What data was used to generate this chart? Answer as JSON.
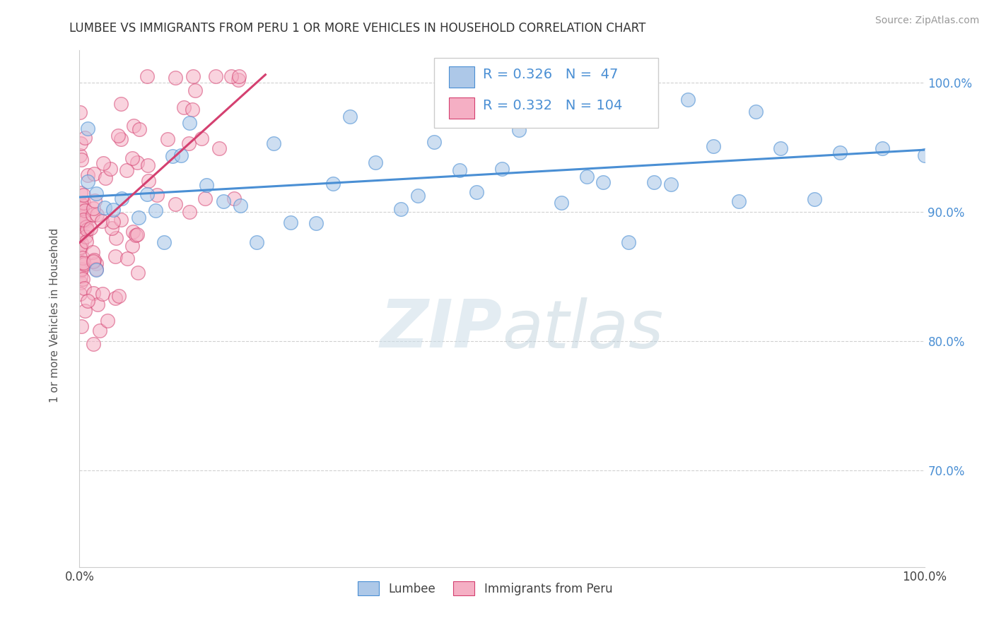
{
  "title": "LUMBEE VS IMMIGRANTS FROM PERU 1 OR MORE VEHICLES IN HOUSEHOLD CORRELATION CHART",
  "source": "Source: ZipAtlas.com",
  "ylabel": "1 or more Vehicles in Household",
  "legend_label1": "Lumbee",
  "legend_label2": "Immigrants from Peru",
  "r1": 0.326,
  "n1": 47,
  "r2": 0.332,
  "n2": 104,
  "xmin": 0.0,
  "xmax": 1.0,
  "ymin": 0.625,
  "ymax": 1.025,
  "yticks": [
    0.7,
    0.8,
    0.9,
    1.0
  ],
  "ytick_labels": [
    "70.0%",
    "80.0%",
    "90.0%",
    "100.0%"
  ],
  "color_lumbee": "#adc8e8",
  "color_peru": "#f5afc4",
  "line_color_lumbee": "#4a8fd4",
  "line_color_peru": "#d44070",
  "watermark_zip": "ZIP",
  "watermark_atlas": "atlas",
  "bg_color": "#ffffff"
}
